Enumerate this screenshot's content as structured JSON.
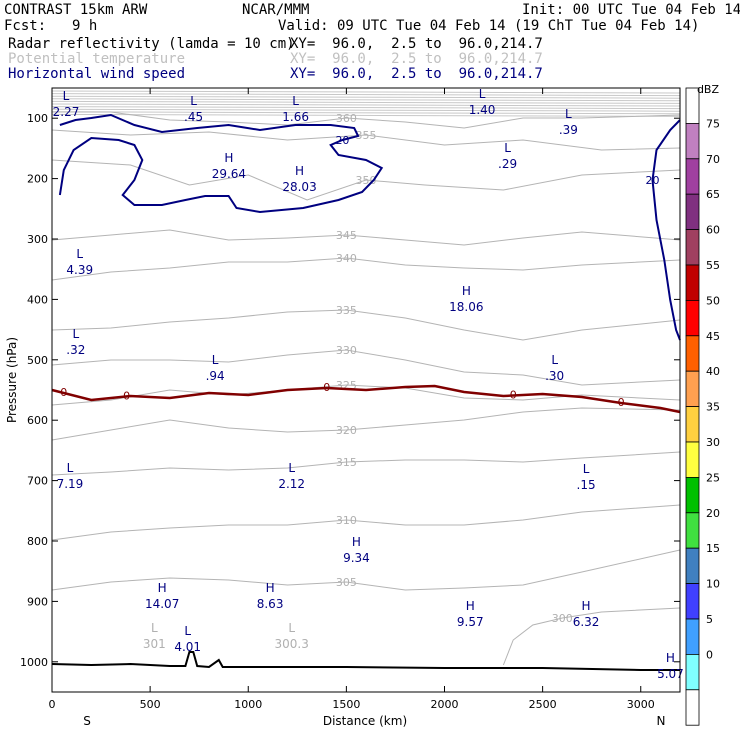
{
  "header": {
    "model": "CONTRAST 15km ARW",
    "org": "NCAR/MMM",
    "init": "Init: 00 UTC Tue 04 Feb 14",
    "fcst_label": "Fcst:",
    "fcst_value": "9 h",
    "valid": "Valid: 09 UTC Tue 04 Feb 14 (19 ChT Tue 04 Feb 14)"
  },
  "fields": [
    {
      "name": "Radar reflectivity (lamda = 10 cm)",
      "xy": "XY=  96.0,  2.5 to  96.0,214.7",
      "color": "#000000"
    },
    {
      "name": "Potential temperature",
      "xy": "XY=  96.0,  2.5 to  96.0,214.7",
      "color": "#c0c0c0"
    },
    {
      "name": "Horizontal wind speed",
      "xy": "XY=  96.0,  2.5 to  96.0,214.7",
      "color": "#000080"
    }
  ],
  "chart_data": {
    "type": "cross-section contour",
    "xlabel": "Distance (km)",
    "ylabel": "Pressure (hPa)",
    "xlim": [
      0,
      3200
    ],
    "ylim": [
      1050,
      50
    ],
    "x_ticks": [
      "0",
      "500",
      "1000",
      "1500",
      "2000",
      "2500",
      "3000"
    ],
    "y_ticks": [
      "100",
      "200",
      "300",
      "400",
      "500",
      "600",
      "700",
      "800",
      "900",
      "1000"
    ],
    "x_end_labels": {
      "left": "S",
      "right": "N"
    },
    "colorbar": {
      "unit": "dBZ",
      "levels": [
        "75",
        "70",
        "65",
        "60",
        "55",
        "50",
        "45",
        "40",
        "35",
        "30",
        "25",
        "20",
        "15",
        "10",
        "5",
        "0"
      ],
      "colors": [
        "#ffffff",
        "#c080c0",
        "#a040a0",
        "#803080",
        "#a04060",
        "#c00000",
        "#ff0000",
        "#ff6000",
        "#ffa050",
        "#ffd040",
        "#ffff40",
        "#00c000",
        "#40e040",
        "#4080c0",
        "#4040ff",
        "#40a0ff",
        "#80ffff",
        "#ffffff"
      ]
    },
    "theta_contours": [
      {
        "label": "360",
        "points": [
          [
            0,
            112
          ],
          [
            300,
            112
          ],
          [
            600,
            120
          ],
          [
            900,
            122
          ],
          [
            1200,
            125
          ],
          [
            1500,
            118
          ],
          [
            1800,
            122
          ],
          [
            2100,
            128
          ],
          [
            2400,
            118
          ],
          [
            2700,
            118
          ],
          [
            3200,
            115
          ]
        ]
      },
      {
        "label": "355",
        "points": [
          [
            0,
            130
          ],
          [
            400,
            135
          ],
          [
            800,
            132
          ],
          [
            1200,
            140
          ],
          [
            1600,
            135
          ],
          [
            2000,
            145
          ],
          [
            2400,
            140
          ],
          [
            2800,
            150
          ],
          [
            3200,
            148
          ]
        ]
      },
      {
        "label": "350",
        "points": [
          [
            0,
            160
          ],
          [
            400,
            165
          ],
          [
            700,
            185
          ],
          [
            1000,
            175
          ],
          [
            1300,
            200
          ],
          [
            1600,
            180
          ],
          [
            1900,
            185
          ],
          [
            2300,
            190
          ],
          [
            2700,
            175
          ],
          [
            3200,
            170
          ]
        ]
      },
      {
        "label": "345",
        "points": [
          [
            0,
            240
          ],
          [
            300,
            235
          ],
          [
            600,
            230
          ],
          [
            900,
            240
          ],
          [
            1200,
            238
          ],
          [
            1500,
            235
          ],
          [
            1800,
            240
          ],
          [
            2100,
            245
          ],
          [
            2400,
            238
          ],
          [
            2700,
            232
          ],
          [
            3200,
            240
          ]
        ]
      },
      {
        "label": "340",
        "points": [
          [
            0,
            280
          ],
          [
            300,
            272
          ],
          [
            600,
            268
          ],
          [
            900,
            262
          ],
          [
            1200,
            262
          ],
          [
            1500,
            258
          ],
          [
            1800,
            265
          ],
          [
            2100,
            268
          ],
          [
            2400,
            270
          ],
          [
            2700,
            265
          ],
          [
            3200,
            260
          ]
        ]
      },
      {
        "label": "335",
        "points": [
          [
            0,
            330
          ],
          [
            300,
            328
          ],
          [
            600,
            322
          ],
          [
            900,
            318
          ],
          [
            1200,
            312
          ],
          [
            1500,
            310
          ],
          [
            1800,
            318
          ],
          [
            2100,
            330
          ],
          [
            2400,
            340
          ],
          [
            2700,
            330
          ],
          [
            3200,
            320
          ]
        ]
      },
      {
        "label": "330",
        "points": [
          [
            0,
            365
          ],
          [
            300,
            360
          ],
          [
            600,
            360
          ],
          [
            900,
            362
          ],
          [
            1200,
            355
          ],
          [
            1500,
            350
          ],
          [
            1800,
            360
          ],
          [
            2100,
            372
          ],
          [
            2400,
            375
          ],
          [
            2700,
            385
          ],
          [
            3200,
            380
          ]
        ]
      },
      {
        "label": "325",
        "points": [
          [
            0,
            405
          ],
          [
            300,
            400
          ],
          [
            600,
            390
          ],
          [
            900,
            395
          ],
          [
            1200,
            390
          ],
          [
            1500,
            385
          ],
          [
            1800,
            388
          ],
          [
            2100,
            398
          ],
          [
            2400,
            400
          ],
          [
            2700,
            395
          ],
          [
            3200,
            400
          ]
        ]
      },
      {
        "label": "320",
        "points": [
          [
            0,
            440
          ],
          [
            300,
            430
          ],
          [
            600,
            420
          ],
          [
            900,
            428
          ],
          [
            1200,
            432
          ],
          [
            1500,
            430
          ],
          [
            1800,
            425
          ],
          [
            2100,
            420
          ],
          [
            2400,
            412
          ],
          [
            2700,
            408
          ],
          [
            3200,
            410
          ]
        ]
      },
      {
        "label": "315",
        "points": [
          [
            0,
            475
          ],
          [
            300,
            472
          ],
          [
            600,
            468
          ],
          [
            900,
            470
          ],
          [
            1200,
            468
          ],
          [
            1500,
            462
          ],
          [
            1800,
            460
          ],
          [
            2100,
            460
          ],
          [
            2400,
            462
          ],
          [
            2700,
            458
          ],
          [
            3200,
            452
          ]
        ]
      },
      {
        "label": "310",
        "points": [
          [
            0,
            540
          ],
          [
            300,
            532
          ],
          [
            600,
            528
          ],
          [
            900,
            525
          ],
          [
            1200,
            525
          ],
          [
            1500,
            520
          ],
          [
            1800,
            525
          ],
          [
            2100,
            525
          ],
          [
            2400,
            520
          ],
          [
            2700,
            512
          ],
          [
            3200,
            505
          ]
        ]
      },
      {
        "label": "305",
        "points": [
          [
            0,
            590
          ],
          [
            300,
            582
          ],
          [
            600,
            578
          ],
          [
            900,
            580
          ],
          [
            1200,
            585
          ],
          [
            1500,
            582
          ],
          [
            1800,
            590
          ],
          [
            2100,
            588
          ],
          [
            2400,
            585
          ],
          [
            2700,
            572
          ],
          [
            3200,
            550
          ]
        ]
      },
      {
        "label": "300",
        "points": [
          [
            2300,
            665
          ],
          [
            2350,
            640
          ],
          [
            2450,
            625
          ],
          [
            2600,
            618
          ],
          [
            2800,
            612
          ],
          [
            3200,
            608
          ]
        ]
      }
    ],
    "zero_line": {
      "label": "0",
      "points": [
        [
          0,
          390
        ],
        [
          200,
          400
        ],
        [
          400,
          396
        ],
        [
          600,
          398
        ],
        [
          800,
          393
        ],
        [
          1000,
          395
        ],
        [
          1200,
          390
        ],
        [
          1400,
          388
        ],
        [
          1600,
          390
        ],
        [
          1800,
          387
        ],
        [
          1950,
          386
        ],
        [
          2100,
          392
        ],
        [
          2300,
          396
        ],
        [
          2500,
          394
        ],
        [
          2700,
          397
        ],
        [
          2900,
          403
        ],
        [
          3100,
          408
        ],
        [
          3200,
          412
        ]
      ]
    },
    "ground": {
      "points": [
        [
          0,
          664
        ],
        [
          200,
          665
        ],
        [
          400,
          664
        ],
        [
          600,
          666
        ],
        [
          680,
          666
        ],
        [
          700,
          652
        ],
        [
          720,
          652
        ],
        [
          740,
          666
        ],
        [
          800,
          667
        ],
        [
          850,
          660
        ],
        [
          870,
          667
        ],
        [
          1000,
          667
        ],
        [
          1500,
          667
        ],
        [
          2000,
          668
        ],
        [
          2500,
          668
        ],
        [
          3000,
          670
        ],
        [
          3200,
          670
        ]
      ]
    },
    "wind_contours": [
      {
        "label": "20",
        "points": [
          [
            40,
            125
          ],
          [
            120,
            120
          ],
          [
            200,
            118
          ],
          [
            300,
            115
          ],
          [
            420,
            125
          ],
          [
            560,
            132
          ],
          [
            740,
            128
          ],
          [
            900,
            125
          ],
          [
            1060,
            130
          ],
          [
            1240,
            125
          ],
          [
            1420,
            125
          ],
          [
            1540,
            128
          ],
          [
            1560,
            136
          ],
          [
            1480,
            140
          ],
          [
            1420,
            145
          ],
          [
            1460,
            155
          ],
          [
            1600,
            160
          ],
          [
            1680,
            168
          ],
          [
            1640,
            180
          ],
          [
            1580,
            192
          ],
          [
            1460,
            200
          ],
          [
            1280,
            208
          ],
          [
            1060,
            212
          ],
          [
            940,
            208
          ],
          [
            900,
            196
          ],
          [
            780,
            196
          ],
          [
            680,
            200
          ],
          [
            560,
            205
          ],
          [
            420,
            205
          ],
          [
            360,
            195
          ],
          [
            420,
            180
          ],
          [
            460,
            160
          ],
          [
            420,
            145
          ],
          [
            340,
            140
          ],
          [
            200,
            138
          ],
          [
            110,
            150
          ],
          [
            60,
            170
          ],
          [
            40,
            195
          ]
        ]
      },
      {
        "label": "20",
        "points": [
          [
            3200,
            120
          ],
          [
            3150,
            130
          ],
          [
            3080,
            150
          ],
          [
            3060,
            180
          ],
          [
            3080,
            220
          ],
          [
            3120,
            260
          ],
          [
            3150,
            300
          ],
          [
            3180,
            330
          ],
          [
            3200,
            340
          ]
        ]
      }
    ],
    "extrema": [
      {
        "kind": "L",
        "value": "2.27",
        "x": 0,
        "y": 110
      },
      {
        "kind": "L",
        "value": ".45",
        "x": 650,
        "y": 115
      },
      {
        "kind": "L",
        "value": "1.66",
        "x": 1170,
        "y": 115
      },
      {
        "kind": "L",
        "value": "1.40",
        "x": 2120,
        "y": 108
      },
      {
        "kind": "L",
        "value": ".39",
        "x": 2560,
        "y": 128
      },
      {
        "kind": "L",
        "value": ".29",
        "x": 2250,
        "y": 162
      },
      {
        "kind": "H",
        "value": "29.64",
        "x": 830,
        "y": 172
      },
      {
        "kind": "H",
        "value": "28.03",
        "x": 1190,
        "y": 185
      },
      {
        "kind": "L",
        "value": "4.39",
        "x": 70,
        "y": 268
      },
      {
        "kind": "H",
        "value": "18.06",
        "x": 2040,
        "y": 305
      },
      {
        "kind": "L",
        "value": ".32",
        "x": 50,
        "y": 348
      },
      {
        "kind": "L",
        "value": ".94",
        "x": 760,
        "y": 374
      },
      {
        "kind": "L",
        "value": ".30",
        "x": 2490,
        "y": 374
      },
      {
        "kind": "L",
        "value": "2.12",
        "x": 1150,
        "y": 482
      },
      {
        "kind": "L",
        "value": ".15",
        "x": 2650,
        "y": 483
      },
      {
        "kind": "L",
        "value": "7.19",
        "x": 20,
        "y": 482
      },
      {
        "kind": "H",
        "value": "9.34",
        "x": 1480,
        "y": 556
      },
      {
        "kind": "H",
        "value": "14.07",
        "x": 490,
        "y": 602
      },
      {
        "kind": "H",
        "value": "8.63",
        "x": 1040,
        "y": 602
      },
      {
        "kind": "H",
        "value": "9.57",
        "x": 2060,
        "y": 620
      },
      {
        "kind": "H",
        "value": "6.32",
        "x": 2650,
        "y": 620
      },
      {
        "kind": "L",
        "value": "4.01",
        "x": 620,
        "y": 645
      },
      {
        "kind": "H",
        "value": "5.07",
        "x": 3080,
        "y": 672
      }
    ],
    "theta_extrema": [
      {
        "kind": "L",
        "value": "301",
        "x": 450,
        "y": 642
      },
      {
        "kind": "L",
        "value": "300.3",
        "x": 1150,
        "y": 642
      }
    ]
  }
}
